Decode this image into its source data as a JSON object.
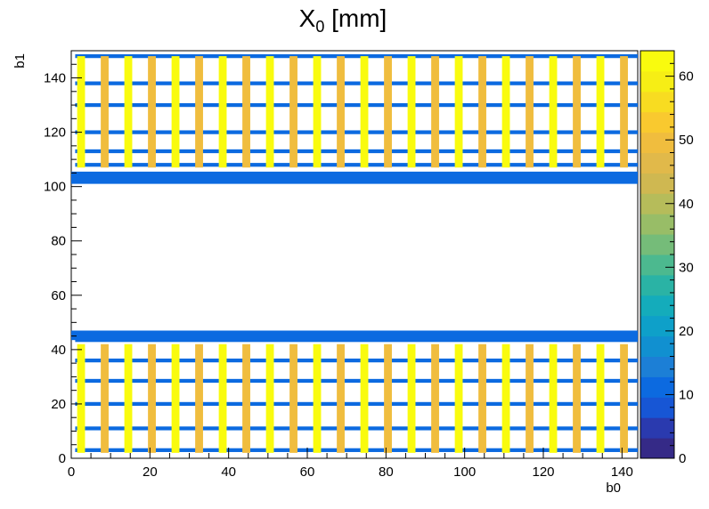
{
  "chart_data": {
    "type": "heatmap",
    "title": "X",
    "title_subscript": "0",
    "title_suffix": " [mm]",
    "xlabel": "b0",
    "ylabel": "b1",
    "xlim": [
      0,
      144
    ],
    "ylim": [
      0,
      150
    ],
    "zlim": [
      0,
      64
    ],
    "x_ticks": [
      0,
      20,
      40,
      60,
      80,
      100,
      120,
      140
    ],
    "y_ticks": [
      0,
      20,
      40,
      60,
      80,
      100,
      120,
      140
    ],
    "z_ticks": [
      0,
      10,
      20,
      30,
      40,
      50,
      60
    ],
    "palette": [
      "#352a87",
      "#2a3aaf",
      "#1756d5",
      "#0c6ae0",
      "#1c7fd6",
      "#1190d0",
      "#0ea0c9",
      "#14acbb",
      "#2ab3a5",
      "#4cb98f",
      "#75bc79",
      "#98bd67",
      "#b6bc5a",
      "#cfb851",
      "#e1b94a",
      "#f0bd3e",
      "#f9c92f",
      "#f8dc21",
      "#f6ee15",
      "#f9fb0e"
    ],
    "regions": [
      {
        "name": "upper block",
        "b1_range": [
          106,
          149
        ],
        "value": 14
      },
      {
        "name": "upper thick band",
        "b1_range": [
          101,
          105.5
        ],
        "value": 12
      },
      {
        "name": "lower thick band",
        "b1_range": [
          43.5,
          47
        ],
        "value": 12
      },
      {
        "name": "lower block",
        "b1_range": [
          1,
          43
        ],
        "value": 14
      }
    ],
    "horizontal_lines_b1": [
      3,
      11,
      20,
      28.5,
      36,
      43.5,
      108,
      113,
      120,
      130,
      138,
      148
    ],
    "horizontal_line_value": 12,
    "columns": [
      {
        "b0": 2.5,
        "value": 63
      },
      {
        "b0": 8.5,
        "value": 50
      },
      {
        "b0": 14.5,
        "value": 63
      },
      {
        "b0": 20.5,
        "value": 50
      },
      {
        "b0": 26.5,
        "value": 63
      },
      {
        "b0": 32.5,
        "value": 50
      },
      {
        "b0": 38.5,
        "value": 63
      },
      {
        "b0": 44.5,
        "value": 50
      },
      {
        "b0": 50.5,
        "value": 63
      },
      {
        "b0": 56.5,
        "value": 50
      },
      {
        "b0": 62.5,
        "value": 63
      },
      {
        "b0": 68.5,
        "value": 50
      },
      {
        "b0": 74.5,
        "value": 63
      },
      {
        "b0": 80.5,
        "value": 50
      },
      {
        "b0": 86.5,
        "value": 63
      },
      {
        "b0": 92.5,
        "value": 50
      },
      {
        "b0": 98.5,
        "value": 63
      },
      {
        "b0": 104.5,
        "value": 50
      },
      {
        "b0": 110.5,
        "value": 63
      },
      {
        "b0": 116.5,
        "value": 50
      },
      {
        "b0": 122.5,
        "value": 63
      },
      {
        "b0": 128.5,
        "value": 50
      },
      {
        "b0": 134.5,
        "value": 63
      },
      {
        "b0": 140.5,
        "value": 50
      }
    ],
    "column_width": 2,
    "grid": false
  }
}
